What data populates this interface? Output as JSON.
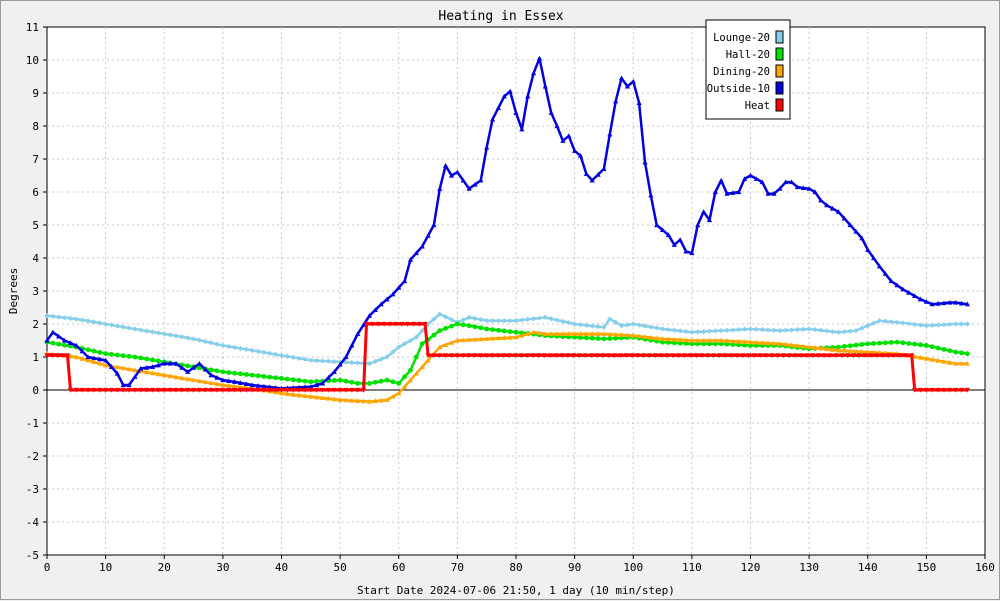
{
  "chart_data": {
    "type": "line",
    "title": "Heating in Essex",
    "xlabel": "Start Date 2024-07-06 21:50, 1 day (10 min/step)",
    "ylabel": "Degrees",
    "xlim": [
      0,
      160
    ],
    "ylim": [
      -5,
      11
    ],
    "x_ticks": [
      "0",
      "10",
      "20",
      "30",
      "40",
      "50",
      "60",
      "70",
      "80",
      "90",
      "100",
      "110",
      "120",
      "130",
      "140",
      "150",
      "160"
    ],
    "y_ticks": [
      "-5",
      "-4",
      "-3",
      "-2",
      "-1",
      "0",
      "1",
      "2",
      "3",
      "4",
      "5",
      "6",
      "7",
      "8",
      "9",
      "10",
      "11"
    ],
    "grid": true,
    "legend_position": "top-right",
    "series": [
      {
        "name": "Lounge-20",
        "color": "#87ceeb",
        "marker": "diamond",
        "points": [
          [
            0,
            2.25
          ],
          [
            5,
            2.15
          ],
          [
            10,
            2.0
          ],
          [
            15,
            1.85
          ],
          [
            20,
            1.7
          ],
          [
            25,
            1.55
          ],
          [
            30,
            1.35
          ],
          [
            35,
            1.2
          ],
          [
            40,
            1.05
          ],
          [
            45,
            0.9
          ],
          [
            50,
            0.85
          ],
          [
            55,
            0.8
          ],
          [
            58,
            1.0
          ],
          [
            60,
            1.3
          ],
          [
            63,
            1.6
          ],
          [
            65,
            2.0
          ],
          [
            67,
            2.3
          ],
          [
            70,
            2.05
          ],
          [
            72,
            2.2
          ],
          [
            75,
            2.1
          ],
          [
            80,
            2.1
          ],
          [
            85,
            2.2
          ],
          [
            90,
            2.0
          ],
          [
            95,
            1.9
          ],
          [
            96,
            2.15
          ],
          [
            98,
            1.95
          ],
          [
            100,
            2.0
          ],
          [
            105,
            1.85
          ],
          [
            110,
            1.75
          ],
          [
            115,
            1.8
          ],
          [
            120,
            1.85
          ],
          [
            125,
            1.8
          ],
          [
            130,
            1.85
          ],
          [
            135,
            1.75
          ],
          [
            138,
            1.8
          ],
          [
            140,
            1.95
          ],
          [
            142,
            2.1
          ],
          [
            145,
            2.05
          ],
          [
            150,
            1.95
          ],
          [
            155,
            2.0
          ],
          [
            157,
            2.0
          ]
        ]
      },
      {
        "name": "Hall-20",
        "color": "#00e000",
        "marker": "circle",
        "points": [
          [
            0,
            1.45
          ],
          [
            5,
            1.3
          ],
          [
            10,
            1.1
          ],
          [
            15,
            1.0
          ],
          [
            20,
            0.85
          ],
          [
            25,
            0.7
          ],
          [
            30,
            0.55
          ],
          [
            35,
            0.45
          ],
          [
            40,
            0.35
          ],
          [
            45,
            0.25
          ],
          [
            50,
            0.3
          ],
          [
            53,
            0.2
          ],
          [
            55,
            0.2
          ],
          [
            58,
            0.3
          ],
          [
            60,
            0.2
          ],
          [
            62,
            0.6
          ],
          [
            64,
            1.4
          ],
          [
            67,
            1.8
          ],
          [
            70,
            2.0
          ],
          [
            72,
            1.95
          ],
          [
            75,
            1.85
          ],
          [
            80,
            1.75
          ],
          [
            85,
            1.65
          ],
          [
            90,
            1.6
          ],
          [
            95,
            1.55
          ],
          [
            100,
            1.6
          ],
          [
            105,
            1.45
          ],
          [
            110,
            1.4
          ],
          [
            115,
            1.4
          ],
          [
            120,
            1.35
          ],
          [
            125,
            1.35
          ],
          [
            130,
            1.25
          ],
          [
            135,
            1.3
          ],
          [
            140,
            1.4
          ],
          [
            145,
            1.45
          ],
          [
            150,
            1.35
          ],
          [
            155,
            1.15
          ],
          [
            157,
            1.1
          ]
        ]
      },
      {
        "name": "Dining-20",
        "color": "#ffa500",
        "marker": "triangle",
        "points": [
          [
            0,
            1.1
          ],
          [
            5,
            1.0
          ],
          [
            10,
            0.75
          ],
          [
            15,
            0.6
          ],
          [
            20,
            0.45
          ],
          [
            25,
            0.3
          ],
          [
            30,
            0.15
          ],
          [
            35,
            0.05
          ],
          [
            40,
            -0.1
          ],
          [
            45,
            -0.2
          ],
          [
            50,
            -0.3
          ],
          [
            55,
            -0.35
          ],
          [
            58,
            -0.3
          ],
          [
            60,
            -0.1
          ],
          [
            62,
            0.3
          ],
          [
            64,
            0.7
          ],
          [
            67,
            1.3
          ],
          [
            70,
            1.5
          ],
          [
            75,
            1.55
          ],
          [
            80,
            1.6
          ],
          [
            83,
            1.75
          ],
          [
            85,
            1.7
          ],
          [
            90,
            1.7
          ],
          [
            95,
            1.7
          ],
          [
            100,
            1.65
          ],
          [
            105,
            1.55
          ],
          [
            110,
            1.5
          ],
          [
            115,
            1.5
          ],
          [
            120,
            1.45
          ],
          [
            125,
            1.4
          ],
          [
            130,
            1.3
          ],
          [
            135,
            1.2
          ],
          [
            140,
            1.15
          ],
          [
            145,
            1.1
          ],
          [
            150,
            0.95
          ],
          [
            155,
            0.8
          ],
          [
            157,
            0.8
          ]
        ]
      },
      {
        "name": "Outside-10",
        "color": "#0000e0",
        "marker": "triangle",
        "points": [
          [
            0,
            1.5
          ],
          [
            1,
            1.75
          ],
          [
            3,
            1.5
          ],
          [
            5,
            1.35
          ],
          [
            7,
            1.0
          ],
          [
            10,
            0.9
          ],
          [
            12,
            0.5
          ],
          [
            13,
            0.15
          ],
          [
            14,
            0.15
          ],
          [
            16,
            0.65
          ],
          [
            18,
            0.7
          ],
          [
            20,
            0.8
          ],
          [
            22,
            0.8
          ],
          [
            24,
            0.55
          ],
          [
            26,
            0.8
          ],
          [
            28,
            0.45
          ],
          [
            30,
            0.3
          ],
          [
            32,
            0.25
          ],
          [
            35,
            0.15
          ],
          [
            40,
            0.05
          ],
          [
            45,
            0.1
          ],
          [
            47,
            0.2
          ],
          [
            49,
            0.55
          ],
          [
            51,
            1.0
          ],
          [
            53,
            1.7
          ],
          [
            55,
            2.25
          ],
          [
            57,
            2.6
          ],
          [
            59,
            2.9
          ],
          [
            61,
            3.3
          ],
          [
            62,
            3.95
          ],
          [
            64,
            4.35
          ],
          [
            66,
            5.0
          ],
          [
            67,
            6.1
          ],
          [
            68,
            6.8
          ],
          [
            69,
            6.5
          ],
          [
            70,
            6.6
          ],
          [
            72,
            6.1
          ],
          [
            74,
            6.35
          ],
          [
            75,
            7.35
          ],
          [
            76,
            8.2
          ],
          [
            78,
            8.9
          ],
          [
            79,
            9.05
          ],
          [
            80,
            8.4
          ],
          [
            81,
            7.9
          ],
          [
            82,
            8.9
          ],
          [
            83,
            9.6
          ],
          [
            84,
            10.05
          ],
          [
            85,
            9.2
          ],
          [
            86,
            8.4
          ],
          [
            87,
            8.0
          ],
          [
            88,
            7.55
          ],
          [
            89,
            7.7
          ],
          [
            90,
            7.25
          ],
          [
            91,
            7.1
          ],
          [
            92,
            6.55
          ],
          [
            93,
            6.35
          ],
          [
            95,
            6.7
          ],
          [
            96,
            7.75
          ],
          [
            97,
            8.75
          ],
          [
            98,
            9.45
          ],
          [
            99,
            9.2
          ],
          [
            100,
            9.35
          ],
          [
            101,
            8.7
          ],
          [
            102,
            6.9
          ],
          [
            103,
            5.9
          ],
          [
            104,
            5.0
          ],
          [
            106,
            4.7
          ],
          [
            107,
            4.4
          ],
          [
            108,
            4.55
          ],
          [
            109,
            4.2
          ],
          [
            110,
            4.15
          ],
          [
            111,
            5.0
          ],
          [
            112,
            5.4
          ],
          [
            113,
            5.15
          ],
          [
            114,
            6.0
          ],
          [
            115,
            6.35
          ],
          [
            116,
            5.95
          ],
          [
            118,
            6.0
          ],
          [
            119,
            6.4
          ],
          [
            120,
            6.5
          ],
          [
            122,
            6.3
          ],
          [
            123,
            5.95
          ],
          [
            124,
            5.95
          ],
          [
            125,
            6.1
          ],
          [
            126,
            6.3
          ],
          [
            127,
            6.3
          ],
          [
            128,
            6.15
          ],
          [
            130,
            6.1
          ],
          [
            131,
            6.0
          ],
          [
            132,
            5.75
          ],
          [
            133,
            5.6
          ],
          [
            135,
            5.4
          ],
          [
            137,
            5.0
          ],
          [
            139,
            4.6
          ],
          [
            140,
            4.25
          ],
          [
            142,
            3.75
          ],
          [
            144,
            3.3
          ],
          [
            146,
            3.05
          ],
          [
            147,
            2.95
          ],
          [
            149,
            2.75
          ],
          [
            151,
            2.6
          ],
          [
            154,
            2.65
          ],
          [
            155,
            2.65
          ],
          [
            157,
            2.6
          ]
        ]
      },
      {
        "name": "Heat",
        "color": "#ff0000",
        "marker": "triangle-down",
        "points": [
          [
            0,
            1.05
          ],
          [
            3.5,
            1.05
          ],
          [
            4,
            0
          ],
          [
            54,
            0
          ],
          [
            54.5,
            2
          ],
          [
            64.5,
            2
          ],
          [
            65,
            1.05
          ],
          [
            147.5,
            1.05
          ],
          [
            148,
            0
          ],
          [
            157,
            0
          ]
        ]
      }
    ]
  }
}
